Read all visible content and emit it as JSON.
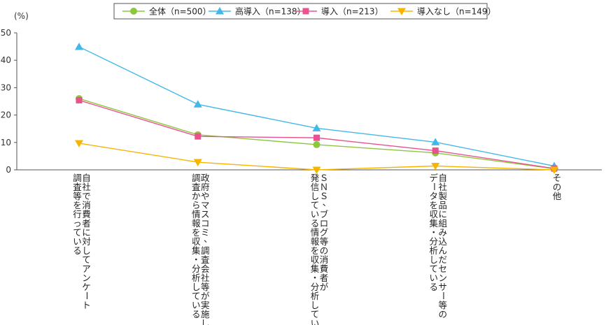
{
  "chart_data": {
    "type": "line",
    "ylabel": "(%)",
    "ylim": [
      0,
      50
    ],
    "yticks": [
      0,
      10,
      20,
      30,
      40,
      50
    ],
    "grid": false,
    "legend_position": "top",
    "categories": [
      [
        "自社で消費者に対してアンケート",
        "調査等を行っている"
      ],
      [
        "政府やマスコミ、調査会社等が実施した",
        "調査から情報を収集・分析している"
      ],
      [
        "ＳＮＳ、ブログ等の消費者が",
        "発信している情報を収集・分析している"
      ],
      [
        "自社製品に組み込んだセンサー等の",
        "データを収集・分析している"
      ],
      [
        "その他"
      ]
    ],
    "series": [
      {
        "name": "全体（n=500）",
        "color": "#8dc63f",
        "marker": "circle",
        "values": [
          26.0,
          12.8,
          9.2,
          6.2,
          0.4
        ]
      },
      {
        "name": "高導入（n=138）",
        "color": "#42b8e8",
        "marker": "triangle-up",
        "values": [
          44.9,
          23.9,
          15.2,
          10.1,
          1.4
        ]
      },
      {
        "name": "導入（n=213）",
        "color": "#e8538f",
        "marker": "square",
        "values": [
          25.4,
          12.2,
          11.7,
          7.0,
          0.5
        ]
      },
      {
        "name": "導入なし（n=149）",
        "color": "#f7b500",
        "marker": "triangle-down",
        "values": [
          9.7,
          2.8,
          0.0,
          1.4,
          0.0
        ]
      }
    ]
  }
}
